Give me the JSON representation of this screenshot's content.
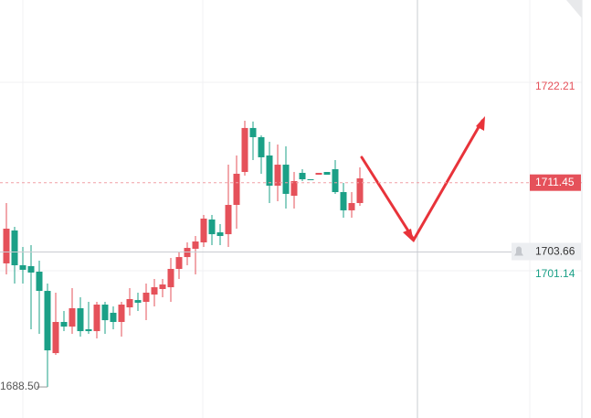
{
  "chart_data": {
    "type": "candlestick",
    "up_color": "#e5515a",
    "down_color": "#1ba087",
    "ylim": [
      1685.01,
      1731.97
    ],
    "open": [
      1702.38,
      1706.08,
      1702.17,
      1702.07,
      1701.45,
      1699.29,
      1692.3,
      1695.8,
      1695.28,
      1697.34,
      1694.98,
      1694.77,
      1697.75,
      1696.83,
      1695.8,
      1697.44,
      1698.26,
      1698.06,
      1698.88,
      1699.5,
      1699.7,
      1701.76,
      1703.09,
      1704.02,
      1704.74,
      1707.31,
      1705.87,
      1705.66,
      1708.95,
      1712.65,
      1717.59,
      1716.56,
      1714.5,
      1711.11,
      1713.47,
      1709.98,
      1712.55,
      1711.83,
      1712.34,
      1712.65,
      1712.96,
      1710.39,
      1708.34,
      1709.16
    ],
    "high": [
      1709.16,
      1706.49,
      1704.23,
      1704.43,
      1702.68,
      1700.11,
      1699.09,
      1697.03,
      1699.6,
      1698.57,
      1698.06,
      1698.06,
      1698.06,
      1697.55,
      1698.06,
      1699.6,
      1699.09,
      1700.11,
      1700.63,
      1700.63,
      1702.99,
      1703.71,
      1704.74,
      1705.46,
      1707.82,
      1707.82,
      1706.79,
      1713.47,
      1714.5,
      1718.41,
      1718.31,
      1716.76,
      1716.04,
      1715.74,
      1715.53,
      1712.65,
      1712.96,
      1711.83,
      1712.55,
      1712.65,
      1713.99,
      1711.42,
      1710.39,
      1713.17
    ],
    "low": [
      1701.14,
      1700.11,
      1700.11,
      1694.98,
      1694.46,
      1688.5,
      1692.1,
      1694.77,
      1694.46,
      1694.15,
      1694.46,
      1693.95,
      1694.46,
      1694.98,
      1694.15,
      1696.52,
      1697.03,
      1696.0,
      1697.55,
      1698.57,
      1698.06,
      1700.63,
      1702.17,
      1701.14,
      1704.23,
      1704.43,
      1704.43,
      1704.23,
      1706.28,
      1712.24,
      1713.99,
      1712.45,
      1709.16,
      1709.36,
      1708.54,
      1708.54,
      1711.62,
      1711.73,
      1712.34,
      1712.34,
      1710.19,
      1707.51,
      1707.51,
      1708.85
    ],
    "close": [
      1706.28,
      1702.17,
      1701.66,
      1701.35,
      1699.29,
      1692.61,
      1695.8,
      1695.28,
      1697.34,
      1694.77,
      1694.77,
      1697.75,
      1696.0,
      1695.8,
      1697.75,
      1698.37,
      1697.96,
      1699.09,
      1699.7,
      1700.01,
      1701.76,
      1703.09,
      1704.12,
      1704.84,
      1707.41,
      1705.66,
      1705.46,
      1708.95,
      1712.45,
      1717.59,
      1716.56,
      1714.3,
      1711.11,
      1713.47,
      1710.19,
      1711.62,
      1711.83,
      1711.73,
      1712.55,
      1712.34,
      1710.39,
      1708.34,
      1709.16,
      1711.93
    ],
    "high_label": 1722.21,
    "last_price": 1711.45,
    "crosshair_price": 1703.66,
    "low_label": 1701.14,
    "min_label": {
      "value": 1688.5,
      "label": "1688.50"
    }
  }
}
